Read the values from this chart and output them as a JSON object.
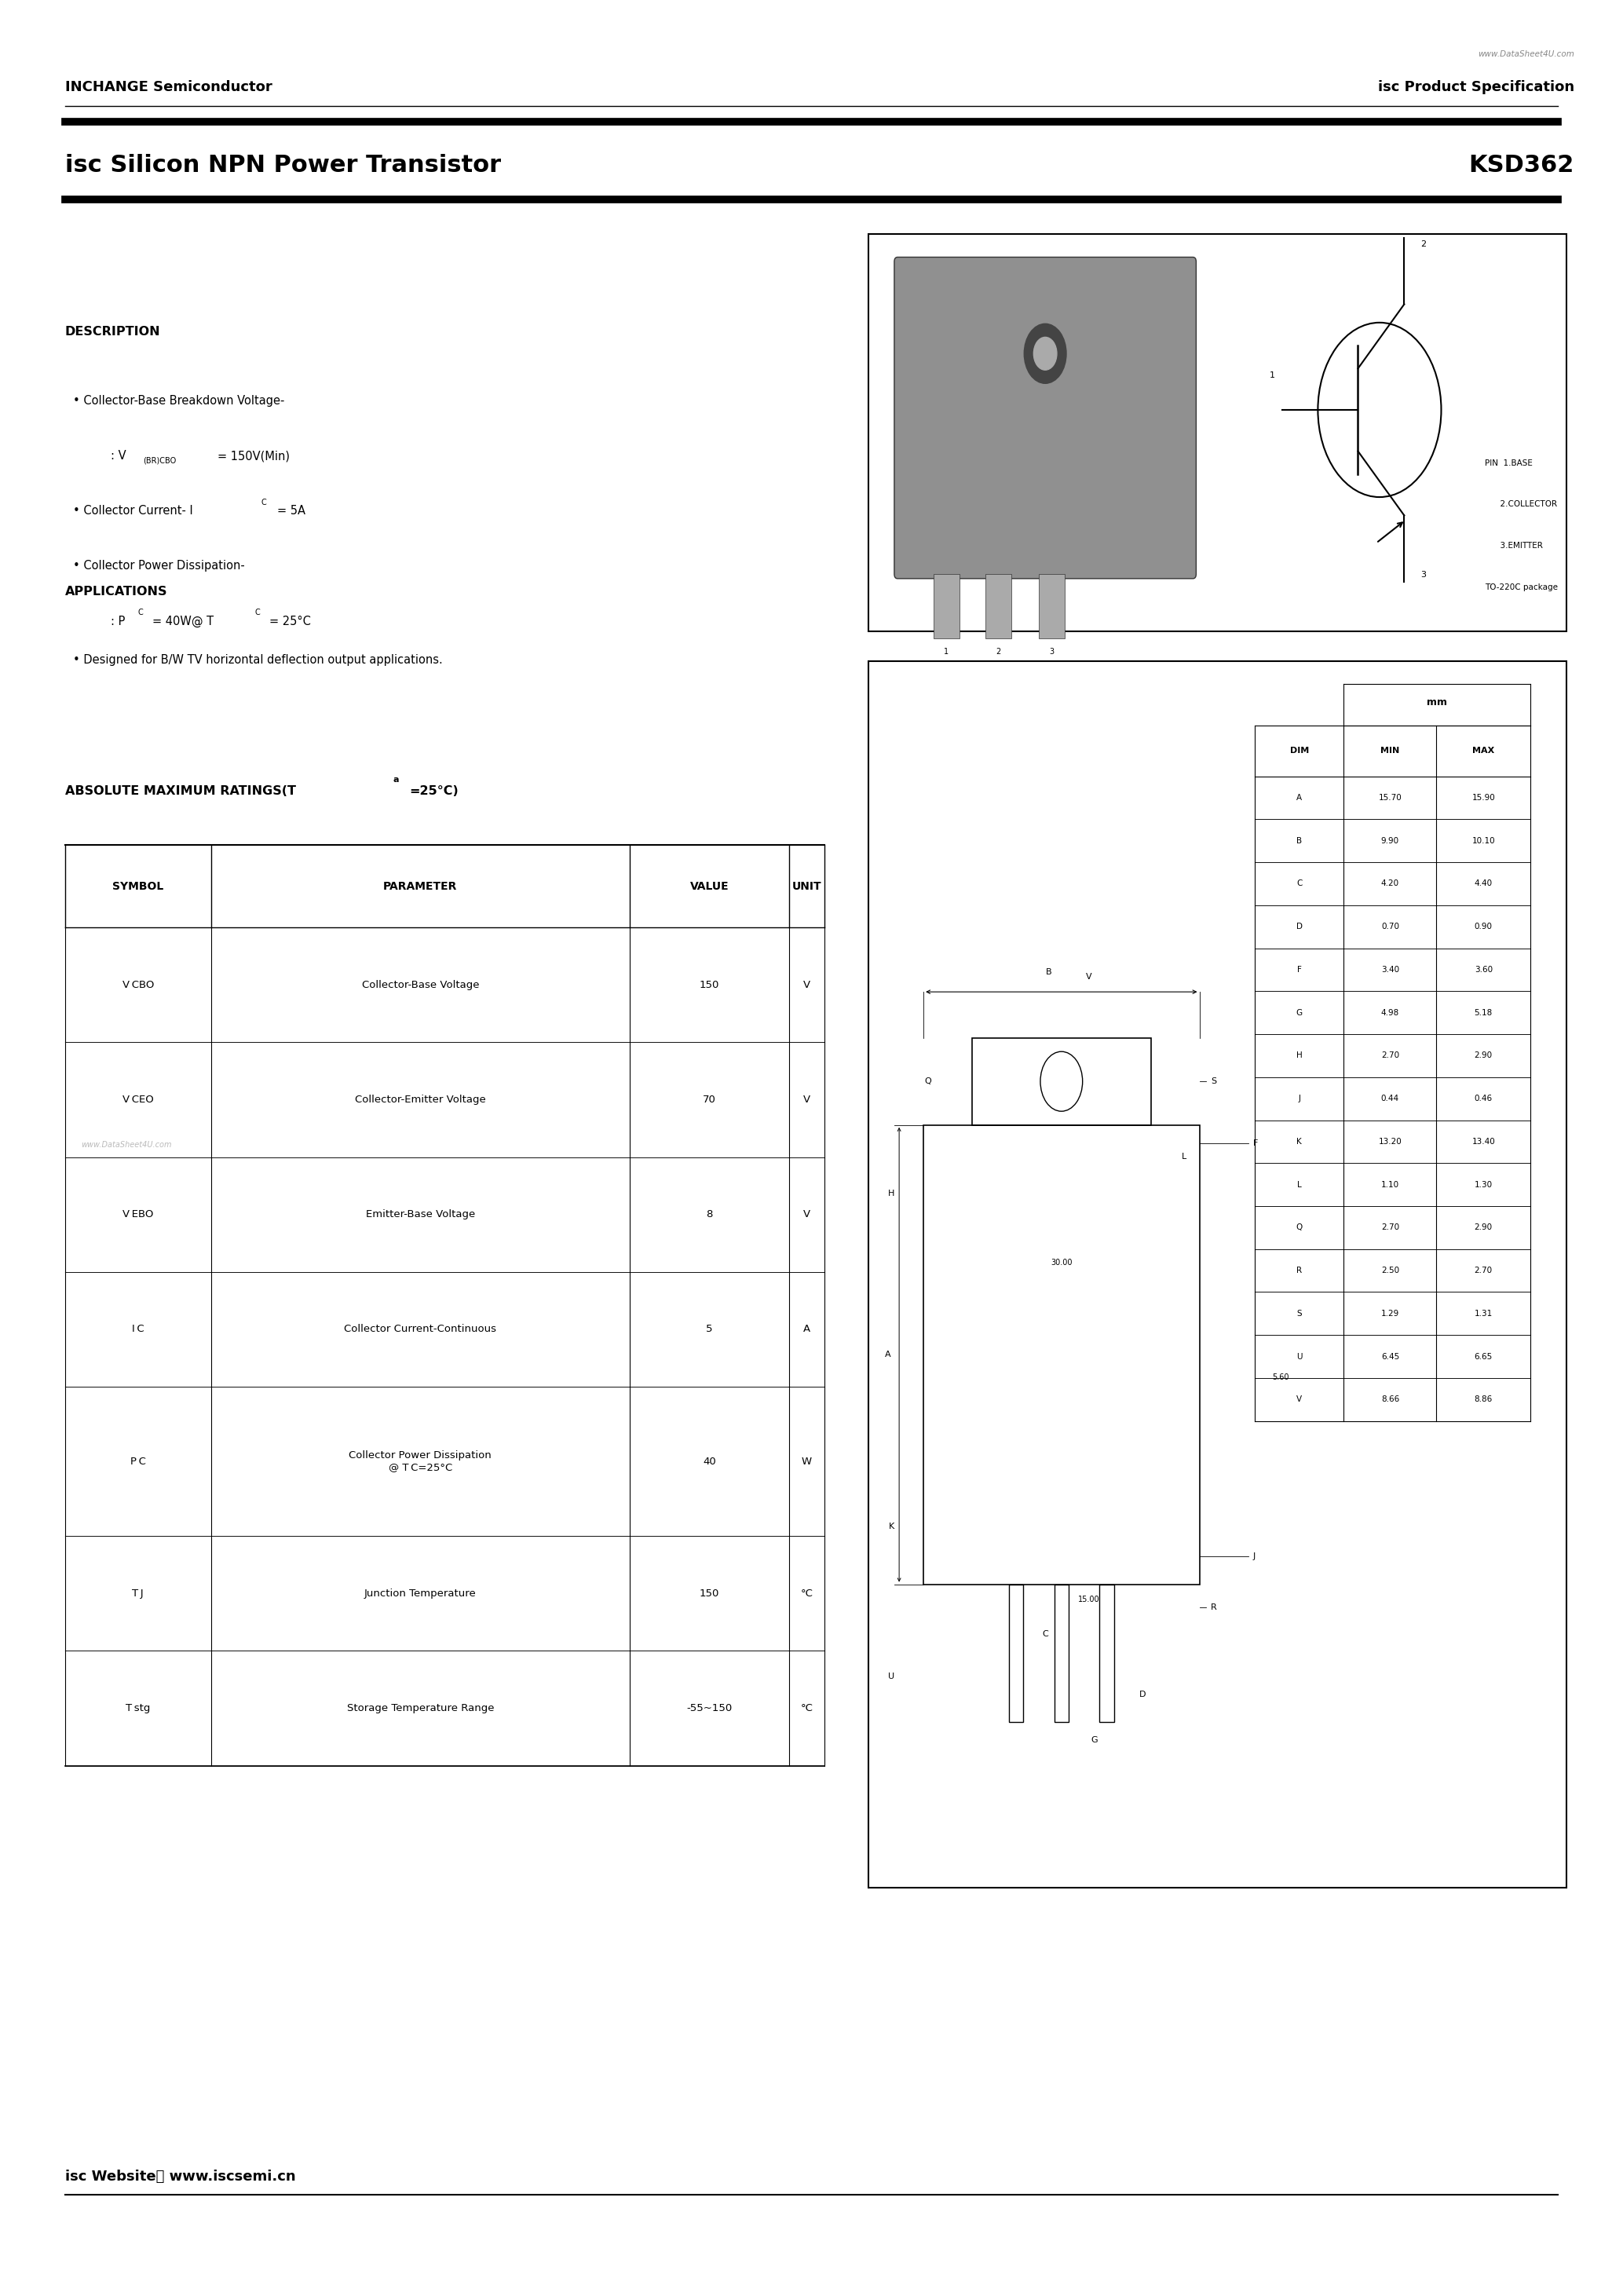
{
  "page_width": 20.67,
  "page_height": 29.24,
  "bg_color": "#ffffff",
  "header_url": "www.DataSheet4U.com",
  "header_left": "INCHANGE Semiconductor",
  "header_right": "isc Product Specification",
  "title_left": "isc Silicon NPN Power Transistor",
  "title_right": "KSD362",
  "description_title": "DESCRIPTION",
  "applications_title": "APPLICATIONS",
  "applications_item": "Designed for B/W TV horizontal deflection output applications.",
  "abs_max_title_part1": "ABSOLUTE MAXIMUM RATINGS(T",
  "abs_max_title_part2": "a",
  "abs_max_title_part3": "=25°C)",
  "table_headers": [
    "SYMBOL",
    "PARAMETER",
    "VALUE",
    "UNIT"
  ],
  "table_rows": [
    [
      "V CBO",
      "Collector-Base Voltage",
      "150",
      "V"
    ],
    [
      "V CEO",
      "Collector-Emitter Voltage",
      "70",
      "V"
    ],
    [
      "V EBO",
      "Emitter-Base Voltage",
      "8",
      "V"
    ],
    [
      "I C",
      "Collector Current-Continuous",
      "5",
      "A"
    ],
    [
      "P C",
      "Collector Power Dissipation\n@ T C=25°C",
      "40",
      "W"
    ],
    [
      "T J",
      "Junction Temperature",
      "150",
      "°C"
    ],
    [
      "T stg",
      "Storage Temperature Range",
      "-55~150",
      "°C"
    ]
  ],
  "watermark": "www.DataSheet4U.com",
  "website_text": "isc Website： www.iscsemi.cn",
  "dim_table_headers": [
    "DIM",
    "MIN",
    "MAX"
  ],
  "dim_table_rows": [
    [
      "A",
      "15.70",
      "15.90"
    ],
    [
      "B",
      "9.90",
      "10.10"
    ],
    [
      "C",
      "4.20",
      "4.40"
    ],
    [
      "D",
      "0.70",
      "0.90"
    ],
    [
      "F",
      "3.40",
      "3.60"
    ],
    [
      "G",
      "4.98",
      "5.18"
    ],
    [
      "H",
      "2.70",
      "2.90"
    ],
    [
      "J",
      "0.44",
      "0.46"
    ],
    [
      "K",
      "13.20",
      "13.40"
    ],
    [
      "L",
      "1.10",
      "1.30"
    ],
    [
      "Q",
      "2.70",
      "2.90"
    ],
    [
      "R",
      "2.50",
      "2.70"
    ],
    [
      "S",
      "1.29",
      "1.31"
    ],
    [
      "U",
      "6.45",
      "6.65"
    ],
    [
      "V",
      "8.66",
      "8.86"
    ]
  ],
  "mm_label": "mm",
  "pin_labels": [
    "PIN  1.BASE",
    "      2.COLLECTOR",
    "      3.EMITTER",
    "TO-220C package"
  ],
  "package_label": "TO-220C package"
}
